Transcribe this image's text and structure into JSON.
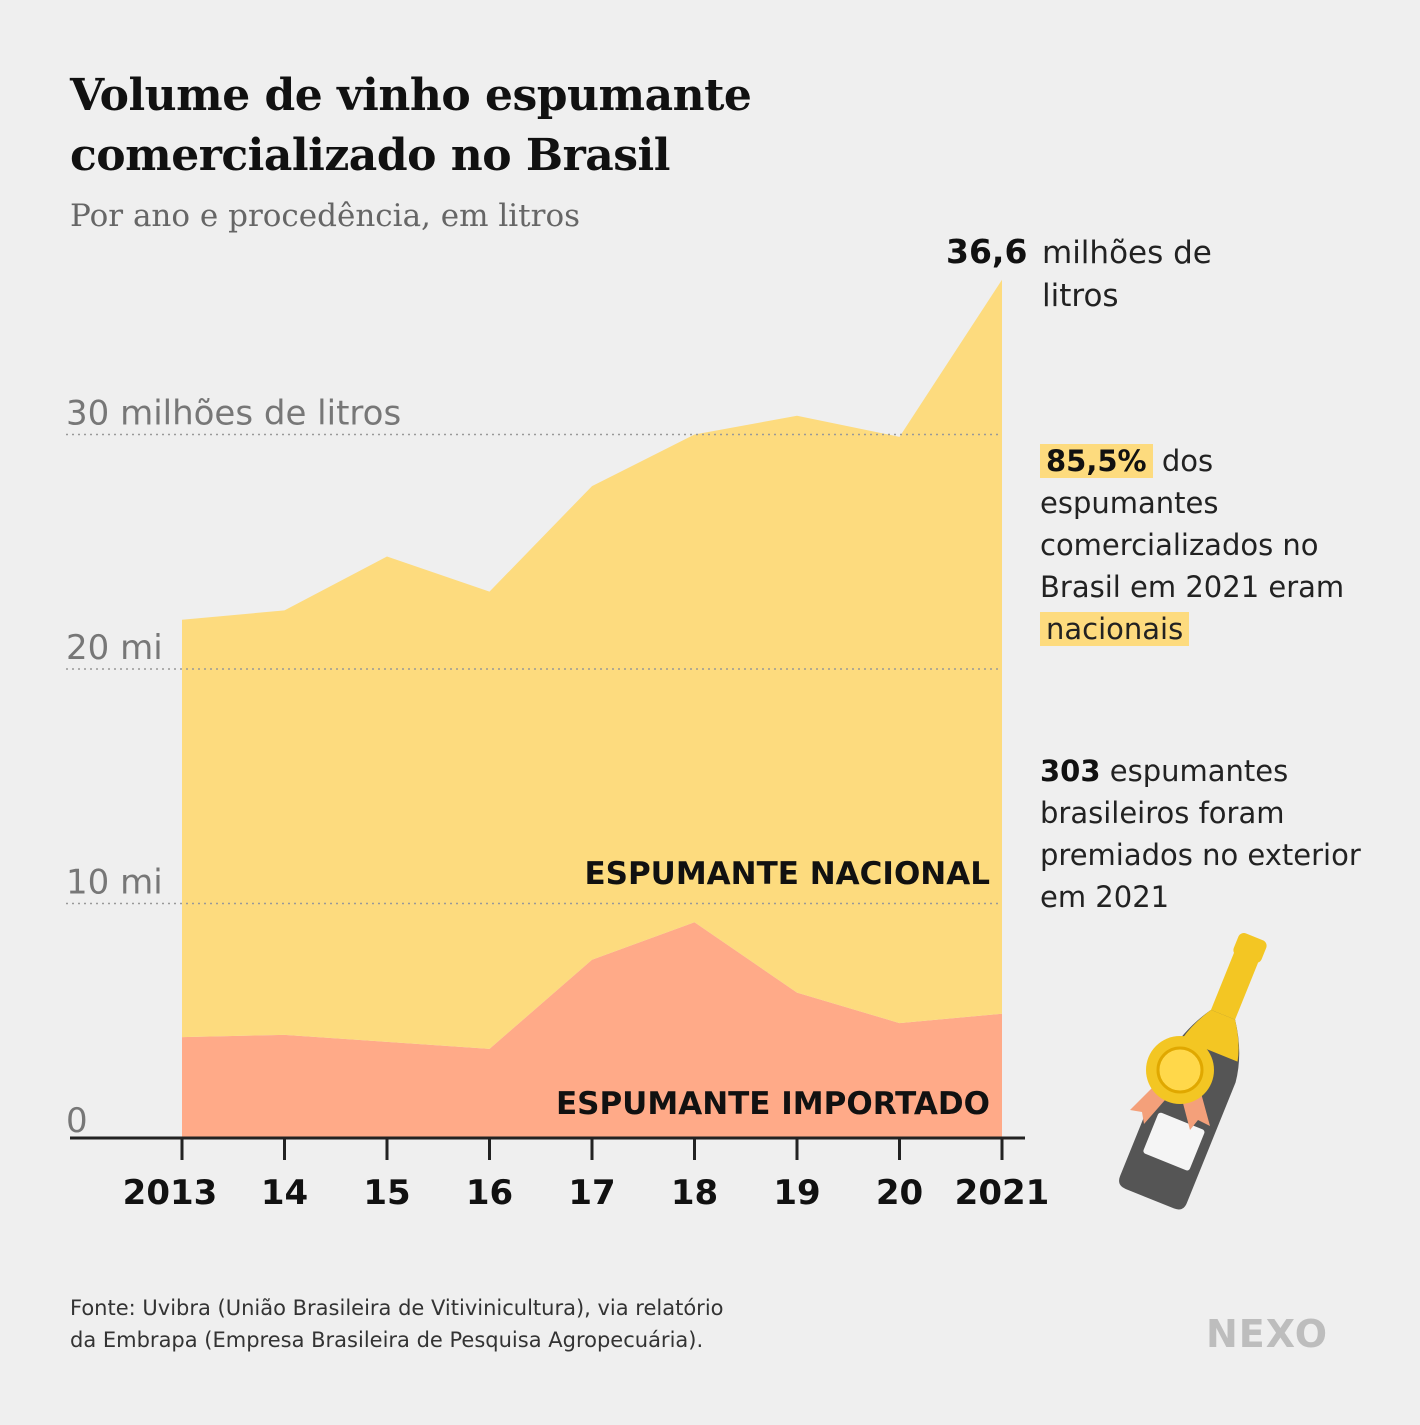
{
  "title": {
    "line1": "Volume de vinho espumante",
    "line2": "comercializado no Brasil"
  },
  "subtitle": "Por ano e procedência, em litros",
  "annotations": {
    "peak_value": "36,6",
    "peak_unit": "milhões de litros",
    "share_pct": "85,5%",
    "share_text_1": " dos espumantes comercializados no Brasil em 2021 eram ",
    "share_highlight": "nacionais",
    "awards_count": "303",
    "awards_text": " espumantes brasileiros foram premiados no exterior em 2021"
  },
  "footer": {
    "source_line1": "Fonte: Uvibra (União Brasileira de Vitivinicultura), via relatório",
    "source_line2": "da Embrapa (Empresa Brasileira de Pesquisa Agropecuária).",
    "logo": "NEXO"
  },
  "chart_data": {
    "type": "area",
    "stacked": true,
    "x": [
      2013,
      2014,
      2015,
      2016,
      2017,
      2018,
      2019,
      2020,
      2021
    ],
    "x_tick_labels": [
      "2013",
      "14",
      "15",
      "16",
      "17",
      "18",
      "19",
      "20",
      "2021"
    ],
    "y_ticks": [
      {
        "value": 0,
        "label": "0"
      },
      {
        "value": 10,
        "label": "10 mi"
      },
      {
        "value": 20,
        "label": "20 mi"
      },
      {
        "value": 30,
        "label": "30 milhões de litros"
      }
    ],
    "ylim": [
      0,
      40
    ],
    "grid": true,
    "series": [
      {
        "name": "ESPUMANTE IMPORTADO",
        "color": "#ffaa88",
        "values": [
          4.3,
          4.4,
          4.1,
          3.8,
          7.6,
          9.2,
          6.2,
          4.9,
          5.3
        ]
      },
      {
        "name": "ESPUMANTE NACIONAL",
        "color": "#fddb7e",
        "values": [
          17.8,
          18.1,
          20.7,
          19.5,
          20.2,
          20.8,
          24.6,
          25.0,
          31.3
        ]
      }
    ],
    "totals": [
      22.1,
      22.5,
      24.8,
      23.3,
      27.8,
      30.0,
      30.8,
      29.9,
      36.6
    ]
  }
}
